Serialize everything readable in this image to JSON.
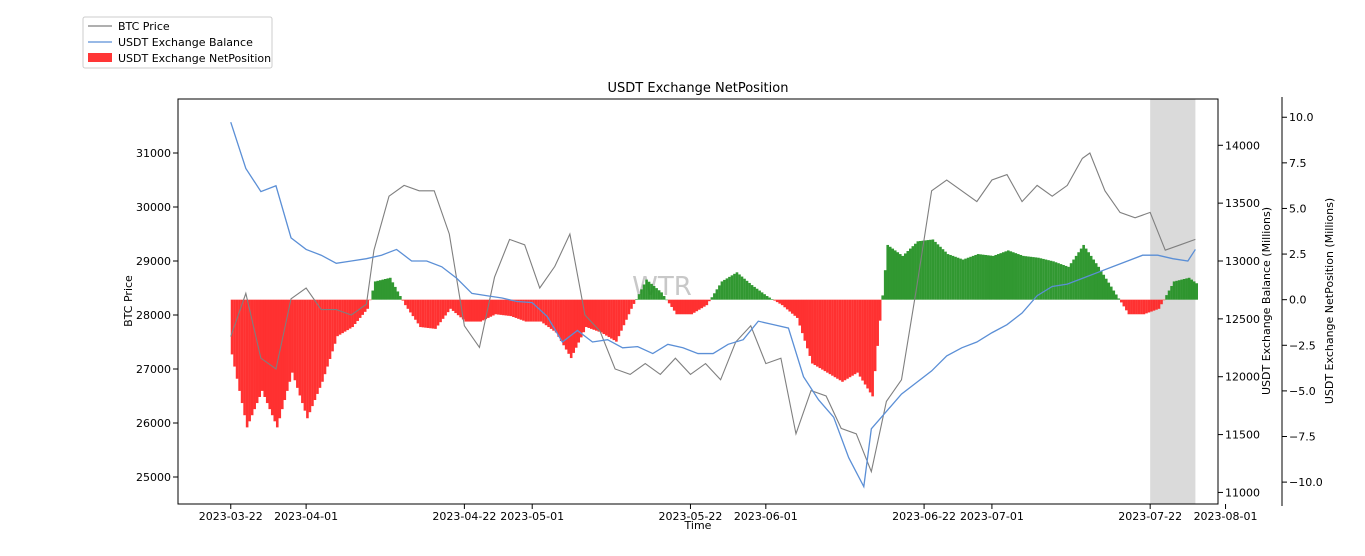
{
  "chart_data": {
    "type": "bar",
    "title": "USDT Exchange NetPosition",
    "xlabel": "Time",
    "ylabel_left": "BTC Price",
    "ylabel_right1": "USDT Exchange Balance (Millions)",
    "ylabel_right2": "USDT Exchange NetPosition (Millions)",
    "watermark": "WTR",
    "legend_placement": "top-left",
    "x_range": [
      "2023-03-15",
      "2023-07-31"
    ],
    "x_ticks": [
      "2023-03-22",
      "2023-04-01",
      "2023-04-22",
      "2023-05-01",
      "2023-05-22",
      "2023-06-01",
      "2023-06-22",
      "2023-07-01",
      "2023-07-22",
      "2023-08-01"
    ],
    "highlight_range": [
      "2023-07-22",
      "2023-07-28"
    ],
    "ylim_left": [
      24500,
      32000
    ],
    "yticks_left": [
      "25000",
      "26000",
      "27000",
      "28000",
      "29000",
      "30000",
      "31000"
    ],
    "ylim_right1": [
      10900,
      14400
    ],
    "yticks_right1": [
      "11000",
      "11500",
      "12000",
      "12500",
      "13000",
      "13500",
      "14000"
    ],
    "ylim_right2": [
      -11.2,
      11.0
    ],
    "yticks_right2": [
      "10.0",
      "7.5",
      "5.0",
      "2.5",
      "0.0",
      "−2.5",
      "−5.0",
      "−7.5",
      "−10.0"
    ],
    "colors": {
      "btc_price": "#7f7f7f",
      "usdt_balance": "#5b8fd6",
      "positive": "#1f8f1f",
      "negative": "#ff2020",
      "highlight": "#d8d8d8"
    },
    "series": [
      {
        "name": "BTC Price",
        "x": [
          "2023-03-22",
          "2023-03-24",
          "2023-03-26",
          "2023-03-28",
          "2023-03-30",
          "2023-04-01",
          "2023-04-03",
          "2023-04-05",
          "2023-04-07",
          "2023-04-09",
          "2023-04-10",
          "2023-04-12",
          "2023-04-14",
          "2023-04-16",
          "2023-04-18",
          "2023-04-20",
          "2023-04-22",
          "2023-04-24",
          "2023-04-26",
          "2023-04-28",
          "2023-04-30",
          "2023-05-02",
          "2023-05-04",
          "2023-05-06",
          "2023-05-08",
          "2023-05-10",
          "2023-05-12",
          "2023-05-14",
          "2023-05-16",
          "2023-05-18",
          "2023-05-20",
          "2023-05-22",
          "2023-05-24",
          "2023-05-26",
          "2023-05-28",
          "2023-05-30",
          "2023-06-01",
          "2023-06-03",
          "2023-06-05",
          "2023-06-07",
          "2023-06-09",
          "2023-06-11",
          "2023-06-13",
          "2023-06-15",
          "2023-06-17",
          "2023-06-19",
          "2023-06-21",
          "2023-06-23",
          "2023-06-25",
          "2023-06-27",
          "2023-06-29",
          "2023-07-01",
          "2023-07-03",
          "2023-07-05",
          "2023-07-07",
          "2023-07-09",
          "2023-07-11",
          "2023-07-13",
          "2023-07-14",
          "2023-07-16",
          "2023-07-18",
          "2023-07-20",
          "2023-07-22",
          "2023-07-24",
          "2023-07-26",
          "2023-07-28"
        ],
        "values": [
          27600,
          28400,
          27200,
          27000,
          28300,
          28500,
          28100,
          28100,
          28000,
          28200,
          29200,
          30200,
          30400,
          30300,
          30300,
          29500,
          27800,
          27400,
          28700,
          29400,
          29300,
          28500,
          28900,
          29500,
          28000,
          27700,
          27000,
          26900,
          27100,
          26900,
          27200,
          26900,
          27100,
          26800,
          27500,
          27800,
          27100,
          27200,
          25800,
          26600,
          26500,
          25900,
          25800,
          25100,
          26400,
          26800,
          28500,
          30300,
          30500,
          30300,
          30100,
          30500,
          30600,
          30100,
          30400,
          30200,
          30400,
          30900,
          31000,
          30300,
          29900,
          29800,
          29900,
          29200,
          29300,
          29400
        ]
      },
      {
        "name": "USDT Exchange Balance",
        "x": [
          "2023-03-22",
          "2023-03-24",
          "2023-03-26",
          "2023-03-28",
          "2023-03-30",
          "2023-04-01",
          "2023-04-03",
          "2023-04-05",
          "2023-04-07",
          "2023-04-09",
          "2023-04-11",
          "2023-04-13",
          "2023-04-15",
          "2023-04-17",
          "2023-04-19",
          "2023-04-21",
          "2023-04-23",
          "2023-04-25",
          "2023-04-27",
          "2023-04-29",
          "2023-05-01",
          "2023-05-03",
          "2023-05-05",
          "2023-05-07",
          "2023-05-09",
          "2023-05-11",
          "2023-05-13",
          "2023-05-15",
          "2023-05-17",
          "2023-05-19",
          "2023-05-21",
          "2023-05-23",
          "2023-05-25",
          "2023-05-27",
          "2023-05-29",
          "2023-05-31",
          "2023-06-02",
          "2023-06-04",
          "2023-06-06",
          "2023-06-08",
          "2023-06-10",
          "2023-06-12",
          "2023-06-14",
          "2023-06-15",
          "2023-06-17",
          "2023-06-19",
          "2023-06-21",
          "2023-06-23",
          "2023-06-25",
          "2023-06-27",
          "2023-06-29",
          "2023-07-01",
          "2023-07-03",
          "2023-07-05",
          "2023-07-07",
          "2023-07-09",
          "2023-07-11",
          "2023-07-13",
          "2023-07-15",
          "2023-07-17",
          "2023-07-19",
          "2023-07-21",
          "2023-07-23",
          "2023-07-25",
          "2023-07-27",
          "2023-07-28"
        ],
        "values": [
          14200,
          13800,
          13600,
          13650,
          13200,
          13100,
          13050,
          12980,
          13000,
          13020,
          13050,
          13100,
          13000,
          13000,
          12950,
          12850,
          12720,
          12700,
          12680,
          12650,
          12640,
          12520,
          12300,
          12400,
          12300,
          12320,
          12250,
          12260,
          12200,
          12280,
          12250,
          12200,
          12200,
          12280,
          12320,
          12480,
          12450,
          12420,
          12000,
          11800,
          11650,
          11300,
          11050,
          11550,
          11700,
          11850,
          11950,
          12050,
          12180,
          12250,
          12300,
          12380,
          12450,
          12550,
          12700,
          12780,
          12800,
          12850,
          12900,
          12950,
          13000,
          13050,
          13050,
          13020,
          13000,
          13100
        ]
      },
      {
        "name": "USDT Exchange NetPosition",
        "x": [
          "2023-03-22",
          "2023-03-24",
          "2023-03-26",
          "2023-03-28",
          "2023-03-30",
          "2023-04-01",
          "2023-04-03",
          "2023-04-05",
          "2023-04-07",
          "2023-04-09",
          "2023-04-10",
          "2023-04-12",
          "2023-04-14",
          "2023-04-16",
          "2023-04-18",
          "2023-04-20",
          "2023-04-22",
          "2023-04-24",
          "2023-04-26",
          "2023-04-28",
          "2023-04-30",
          "2023-05-02",
          "2023-05-04",
          "2023-05-06",
          "2023-05-08",
          "2023-05-10",
          "2023-05-12",
          "2023-05-14",
          "2023-05-16",
          "2023-05-18",
          "2023-05-20",
          "2023-05-22",
          "2023-05-24",
          "2023-05-26",
          "2023-05-28",
          "2023-05-30",
          "2023-06-01",
          "2023-06-03",
          "2023-06-05",
          "2023-06-07",
          "2023-06-09",
          "2023-06-11",
          "2023-06-13",
          "2023-06-15",
          "2023-06-17",
          "2023-06-19",
          "2023-06-21",
          "2023-06-23",
          "2023-06-25",
          "2023-06-27",
          "2023-06-29",
          "2023-07-01",
          "2023-07-03",
          "2023-07-05",
          "2023-07-07",
          "2023-07-09",
          "2023-07-11",
          "2023-07-13",
          "2023-07-15",
          "2023-07-17",
          "2023-07-19",
          "2023-07-21",
          "2023-07-23",
          "2023-07-25",
          "2023-07-27",
          "2023-07-28"
        ],
        "values": [
          -3,
          -7,
          -5,
          -7,
          -4,
          -6.5,
          -4.5,
          -2,
          -1.5,
          -0.5,
          1,
          1.2,
          -0.3,
          -1.5,
          -1.6,
          -0.5,
          -1.2,
          -1.2,
          -0.8,
          -0.9,
          -1.2,
          -1.2,
          -1.8,
          -3.2,
          -1.5,
          -1.8,
          -2.3,
          -0.5,
          1.1,
          0.4,
          -0.8,
          -0.8,
          -0.3,
          1.0,
          1.5,
          0.8,
          0.2,
          -0.3,
          -1.0,
          -3.5,
          -4.0,
          -4.5,
          -4.0,
          -5.3,
          3.0,
          2.4,
          3.2,
          3.3,
          2.5,
          2.2,
          2.5,
          2.4,
          2.7,
          2.4,
          2.3,
          2.1,
          1.8,
          3.0,
          1.8,
          0.5,
          -0.8,
          -0.8,
          -0.5,
          1.0,
          1.2,
          0.9
        ]
      }
    ]
  }
}
